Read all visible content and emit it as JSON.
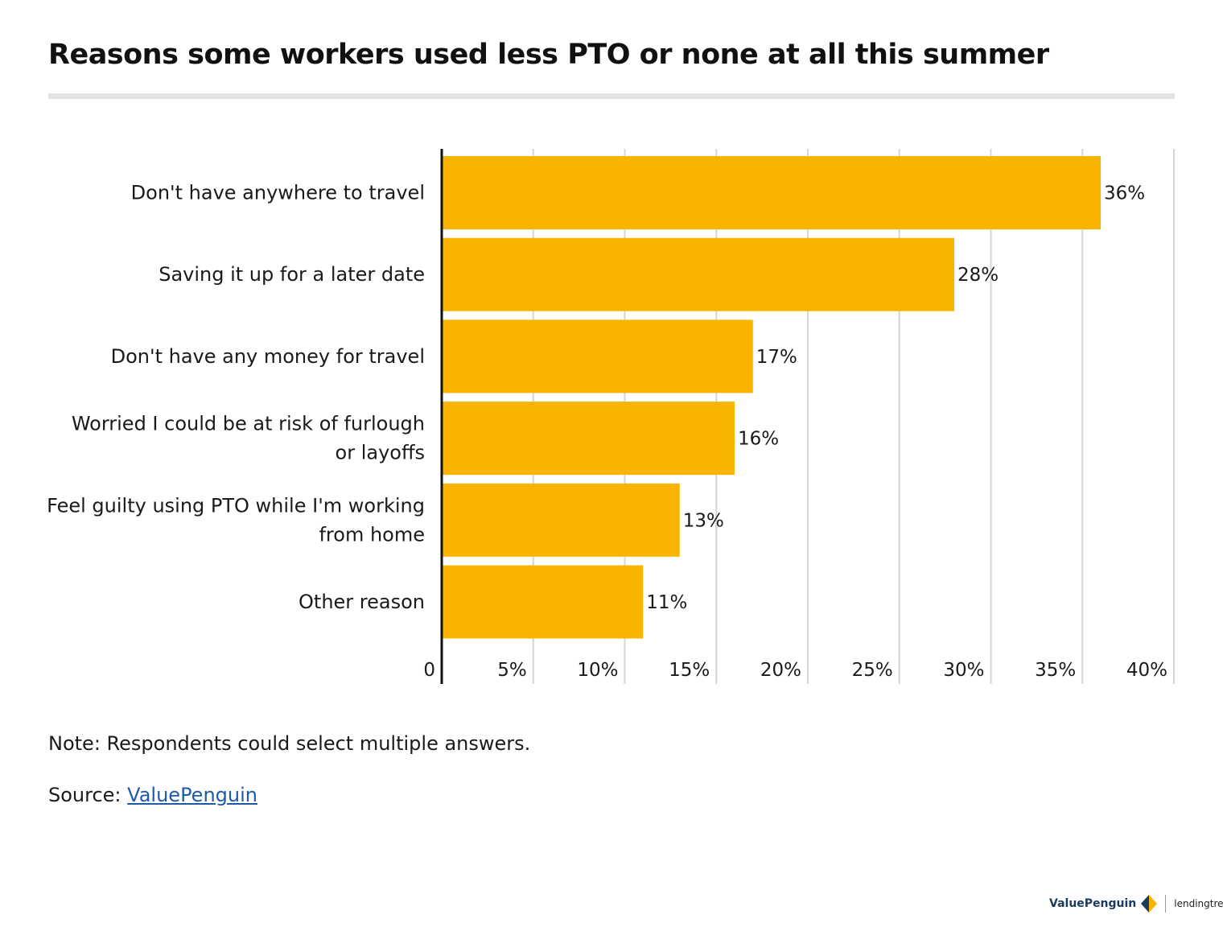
{
  "header": {
    "title": "Reasons some workers used less PTO or none at all this summer"
  },
  "colors": {
    "bar": "#F8B400",
    "grid": "#d6d6d6",
    "axis": "#111111",
    "link": "#1f5aa8"
  },
  "chart_data": {
    "type": "bar",
    "orientation": "horizontal",
    "categories": [
      [
        "Don't have anywhere to travel"
      ],
      [
        "Saving it up for a later date"
      ],
      [
        "Don't have any money for travel"
      ],
      [
        "Worried I could be at risk of furlough",
        "or layoffs"
      ],
      [
        "Feel guilty using PTO while I'm working",
        "from home"
      ],
      [
        "Other reason"
      ]
    ],
    "values": [
      36,
      28,
      17,
      16,
      13,
      11
    ],
    "value_labels": [
      "36%",
      "28%",
      "17%",
      "16%",
      "13%",
      "11%"
    ],
    "xlim": [
      0,
      40
    ],
    "xticks": [
      0,
      5,
      10,
      15,
      20,
      25,
      30,
      35,
      40
    ],
    "xtick_labels": [
      "0",
      "5%",
      "10%",
      "15%",
      "20%",
      "25%",
      "30%",
      "35%",
      "40%"
    ],
    "grid": "vertical",
    "legend": "none"
  },
  "footer": {
    "note": "Note: Respondents could select multiple answers.",
    "source_prefix": "Source:",
    "source_link": "ValuePenguin"
  },
  "brand": {
    "name": "ValuePenguin",
    "partner": "lendingtree"
  }
}
